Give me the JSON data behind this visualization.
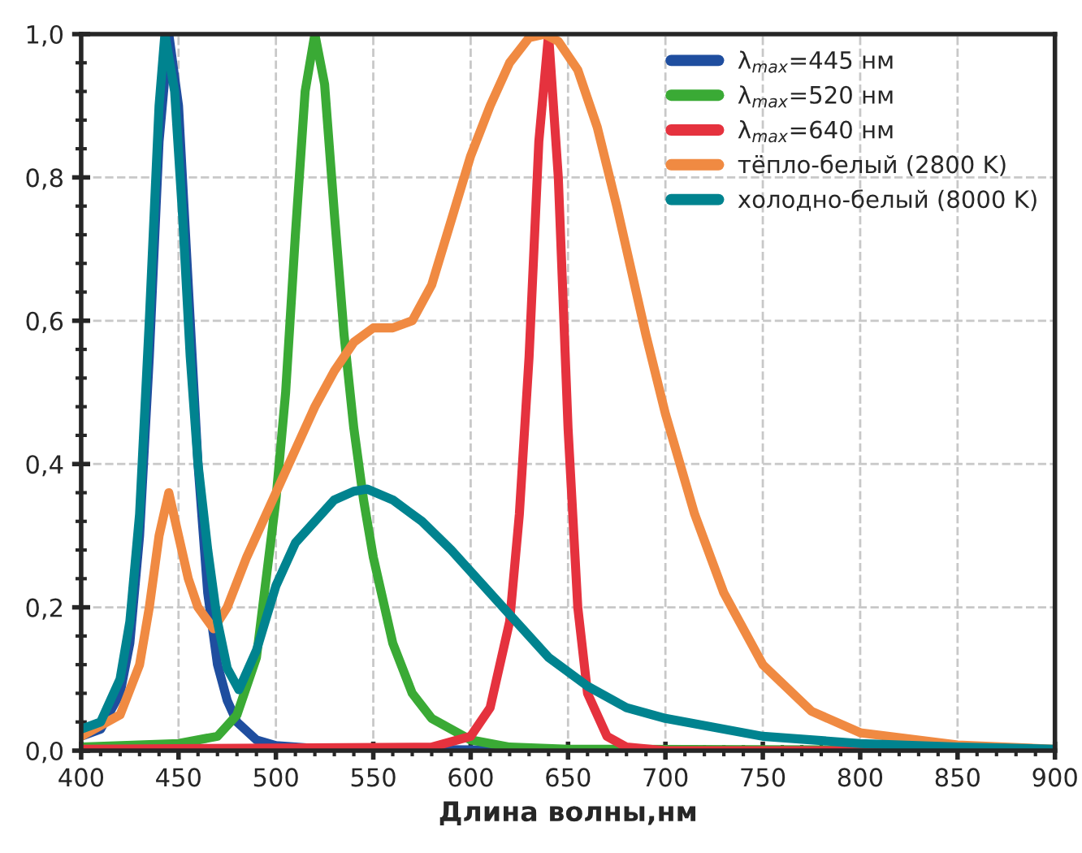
{
  "chart_data": {
    "type": "line",
    "xlabel": "Длина волны,нм",
    "xlim": [
      400,
      900
    ],
    "xticks": [
      400,
      450,
      500,
      550,
      600,
      650,
      700,
      750,
      800,
      850,
      900
    ],
    "ylim": [
      0,
      1
    ],
    "yticks": [
      {
        "value": 0,
        "label": "0,0"
      },
      {
        "value": 0.2,
        "label": "0,2"
      },
      {
        "value": 0.4,
        "label": "0,4"
      },
      {
        "value": 0.6,
        "label": "0,6"
      },
      {
        "value": 0.8,
        "label": "0,8"
      },
      {
        "value": 1,
        "label": "1,0"
      }
    ],
    "grid": true,
    "legend": "top right",
    "line_style": "solid",
    "marker": "none",
    "series": [
      {
        "name": "λ$_{max}$=445 нм",
        "color": "#1f4e9f",
        "x": [
          400,
          410,
          420,
          425,
          430,
          435,
          440,
          445,
          450,
          455,
          460,
          465,
          470,
          475,
          480,
          490,
          500,
          520,
          550,
          600,
          700,
          900
        ],
        "values": [
          0.02,
          0.03,
          0.08,
          0.15,
          0.3,
          0.55,
          0.85,
          1.0,
          0.9,
          0.65,
          0.4,
          0.22,
          0.12,
          0.07,
          0.04,
          0.015,
          0.007,
          0.003,
          0.002,
          0.001,
          0,
          0
        ]
      },
      {
        "name": "λ$_{max}$=520 нм",
        "color": "#3aaa35",
        "x": [
          400,
          450,
          470,
          480,
          490,
          500,
          505,
          510,
          515,
          520,
          525,
          530,
          535,
          540,
          545,
          550,
          560,
          570,
          580,
          600,
          620,
          650,
          900
        ],
        "values": [
          0.005,
          0.01,
          0.02,
          0.05,
          0.13,
          0.35,
          0.5,
          0.72,
          0.92,
          1.0,
          0.93,
          0.75,
          0.58,
          0.45,
          0.35,
          0.27,
          0.15,
          0.08,
          0.045,
          0.015,
          0.005,
          0.002,
          0
        ]
      },
      {
        "name": "λ$_{max}$=640 нм",
        "color": "#e5323e",
        "x": [
          400,
          580,
          600,
          610,
          620,
          625,
          630,
          635,
          640,
          645,
          650,
          655,
          660,
          670,
          680,
          700,
          900
        ],
        "values": [
          0.002,
          0.005,
          0.02,
          0.06,
          0.18,
          0.33,
          0.55,
          0.85,
          1.0,
          0.8,
          0.45,
          0.2,
          0.08,
          0.02,
          0.005,
          0,
          0
        ]
      },
      {
        "name": "тёпло-белый (2800 K)",
        "color": "#f08a42",
        "x": [
          400,
          420,
          430,
          435,
          440,
          445,
          450,
          455,
          460,
          468,
          475,
          485,
          500,
          510,
          520,
          530,
          540,
          550,
          560,
          570,
          580,
          590,
          600,
          610,
          620,
          630,
          638,
          645,
          655,
          665,
          675,
          690,
          700,
          715,
          730,
          750,
          775,
          800,
          850,
          900
        ],
        "values": [
          0.02,
          0.05,
          0.12,
          0.2,
          0.3,
          0.36,
          0.3,
          0.24,
          0.2,
          0.17,
          0.2,
          0.27,
          0.36,
          0.42,
          0.48,
          0.53,
          0.57,
          0.59,
          0.59,
          0.6,
          0.65,
          0.74,
          0.83,
          0.9,
          0.96,
          0.995,
          1.0,
          0.99,
          0.95,
          0.87,
          0.76,
          0.58,
          0.47,
          0.33,
          0.22,
          0.12,
          0.055,
          0.025,
          0.008,
          0.002
        ]
      },
      {
        "name": "холодно-белый (8000 K)",
        "color": "#00838f",
        "x": [
          400,
          410,
          420,
          425,
          430,
          435,
          440,
          443,
          448,
          452,
          456,
          460,
          465,
          470,
          475,
          481,
          490,
          500,
          510,
          520,
          530,
          540,
          547,
          560,
          575,
          590,
          600,
          620,
          640,
          660,
          680,
          700,
          750,
          800,
          850,
          900
        ],
        "values": [
          0.03,
          0.04,
          0.1,
          0.18,
          0.33,
          0.6,
          0.9,
          1.0,
          0.92,
          0.75,
          0.55,
          0.4,
          0.28,
          0.18,
          0.115,
          0.085,
          0.14,
          0.23,
          0.29,
          0.32,
          0.35,
          0.362,
          0.365,
          0.35,
          0.32,
          0.28,
          0.25,
          0.19,
          0.13,
          0.09,
          0.06,
          0.045,
          0.02,
          0.01,
          0.005,
          0.002
        ]
      }
    ]
  }
}
